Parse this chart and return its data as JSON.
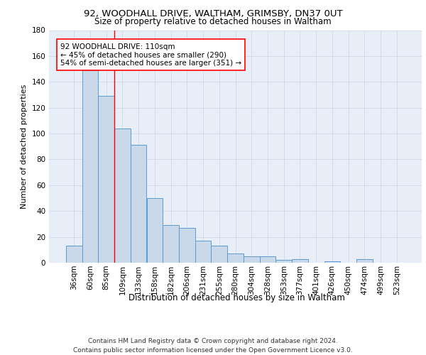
{
  "title1": "92, WOODHALL DRIVE, WALTHAM, GRIMSBY, DN37 0UT",
  "title2": "Size of property relative to detached houses in Waltham",
  "xlabel": "Distribution of detached houses by size in Waltham",
  "ylabel": "Number of detached properties",
  "categories": [
    "36sqm",
    "60sqm",
    "85sqm",
    "109sqm",
    "133sqm",
    "158sqm",
    "182sqm",
    "206sqm",
    "231sqm",
    "255sqm",
    "280sqm",
    "304sqm",
    "328sqm",
    "353sqm",
    "377sqm",
    "401sqm",
    "426sqm",
    "450sqm",
    "474sqm",
    "499sqm",
    "523sqm"
  ],
  "values": [
    13,
    149,
    129,
    104,
    91,
    50,
    29,
    27,
    17,
    13,
    7,
    5,
    5,
    2,
    3,
    0,
    1,
    0,
    3,
    0,
    0
  ],
  "bar_color": "#c9d9ea",
  "bar_edge_color": "#5b9bd5",
  "grid_color": "#d0d8e8",
  "bg_color": "#e8eef8",
  "annotation_text": "92 WOODHALL DRIVE: 110sqm\n← 45% of detached houses are smaller (290)\n54% of semi-detached houses are larger (351) →",
  "red_line_x": 2.5,
  "ylim": [
    0,
    180
  ],
  "yticks": [
    0,
    20,
    40,
    60,
    80,
    100,
    120,
    140,
    160,
    180
  ],
  "footer": "Contains HM Land Registry data © Crown copyright and database right 2024.\nContains public sector information licensed under the Open Government Licence v3.0.",
  "title1_fontsize": 9.5,
  "title2_fontsize": 8.5,
  "xlabel_fontsize": 8.5,
  "ylabel_fontsize": 8,
  "tick_fontsize": 7.5,
  "annot_fontsize": 7.5,
  "footer_fontsize": 6.5
}
